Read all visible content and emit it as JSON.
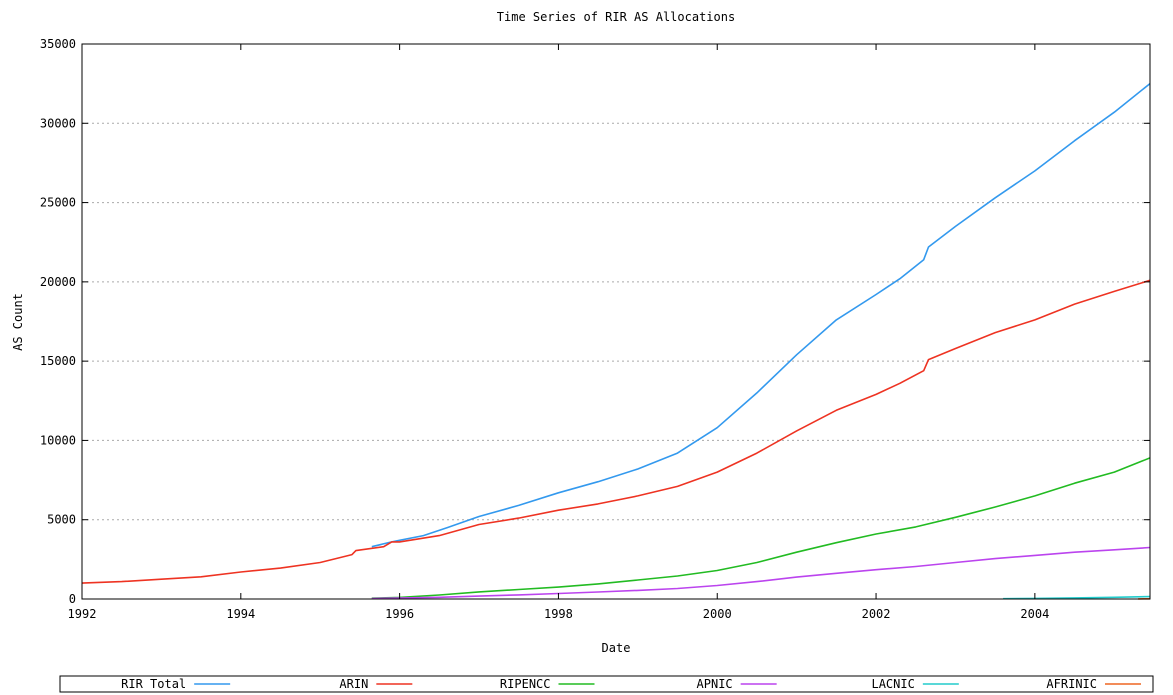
{
  "chart_data": {
    "type": "line",
    "title": "Time Series of RIR AS Allocations",
    "xlabel": "Date",
    "ylabel": "AS Count",
    "xlim": [
      1992,
      2005.45
    ],
    "ylim": [
      0,
      35000
    ],
    "x_ticks": [
      1992,
      1994,
      1996,
      1998,
      2000,
      2002,
      2004
    ],
    "x_tick_labels": [
      "1992",
      "1994",
      "1996",
      "1998",
      "2000",
      "2002",
      "2004"
    ],
    "y_ticks": [
      0,
      5000,
      10000,
      15000,
      20000,
      25000,
      30000,
      35000
    ],
    "y_tick_labels": [
      "0",
      "5000",
      "10000",
      "15000",
      "20000",
      "25000",
      "30000",
      "35000"
    ],
    "grid": "horizontal dotted",
    "legend_position": "bottom",
    "series": [
      {
        "name": "RIR Total",
        "color": "#3399ee",
        "x": [
          1995.65,
          1995.9,
          1996.0,
          1996.3,
          1996.6,
          1997.0,
          1997.5,
          1998.0,
          1998.5,
          1999.0,
          1999.5,
          2000.0,
          2000.5,
          2001.0,
          2001.5,
          2002.0,
          2002.3,
          2002.6,
          2002.66,
          2003.0,
          2003.5,
          2004.0,
          2004.5,
          2005.0,
          2005.45
        ],
        "values": [
          3300,
          3600,
          3700,
          4000,
          4500,
          5200,
          5900,
          6700,
          7400,
          8200,
          9200,
          10800,
          13000,
          15400,
          17600,
          19200,
          20200,
          21400,
          22200,
          23500,
          25300,
          27000,
          28900,
          30700,
          32500
        ]
      },
      {
        "name": "ARIN",
        "color": "#ee3322",
        "x": [
          1992.0,
          1992.5,
          1993.0,
          1993.5,
          1994.0,
          1994.5,
          1995.0,
          1995.4,
          1995.45,
          1995.8,
          1995.9,
          1996.0,
          1996.5,
          1997.0,
          1997.5,
          1998.0,
          1998.5,
          1999.0,
          1999.5,
          2000.0,
          2000.5,
          2001.0,
          2001.5,
          2002.0,
          2002.3,
          2002.6,
          2002.66,
          2003.0,
          2003.5,
          2004.0,
          2004.5,
          2005.0,
          2005.45
        ],
        "values": [
          1000,
          1100,
          1250,
          1400,
          1700,
          1950,
          2300,
          2800,
          3050,
          3300,
          3600,
          3600,
          4000,
          4700,
          5100,
          5600,
          6000,
          6500,
          7100,
          8000,
          9200,
          10600,
          11900,
          12900,
          13600,
          14400,
          15100,
          15800,
          16800,
          17600,
          18600,
          19400,
          20100
        ]
      },
      {
        "name": "RIPENCC",
        "color": "#22bb22",
        "x": [
          1995.65,
          1996.0,
          1996.5,
          1997.0,
          1997.5,
          1998.0,
          1998.5,
          1999.0,
          1999.5,
          2000.0,
          2000.5,
          2001.0,
          2001.5,
          2002.0,
          2002.5,
          2003.0,
          2003.5,
          2004.0,
          2004.5,
          2005.0,
          2005.45
        ],
        "values": [
          50,
          100,
          250,
          450,
          600,
          750,
          950,
          1200,
          1450,
          1800,
          2300,
          2950,
          3550,
          4100,
          4550,
          5150,
          5800,
          6500,
          7300,
          8000,
          8900
        ]
      },
      {
        "name": "APNIC",
        "color": "#bb44ee",
        "x": [
          1995.65,
          1996.0,
          1996.5,
          1997.0,
          1997.5,
          1998.0,
          1998.5,
          1999.0,
          1999.5,
          2000.0,
          2000.5,
          2001.0,
          2001.5,
          2002.0,
          2002.5,
          2003.0,
          2003.5,
          2004.0,
          2004.5,
          2005.0,
          2005.45
        ],
        "values": [
          30,
          60,
          110,
          180,
          260,
          350,
          440,
          540,
          660,
          850,
          1100,
          1380,
          1620,
          1850,
          2050,
          2300,
          2550,
          2750,
          2950,
          3100,
          3250
        ]
      },
      {
        "name": "LACNIC",
        "color": "#22cccc",
        "x": [
          2003.6,
          2004.0,
          2004.5,
          2005.0,
          2005.45
        ],
        "values": [
          20,
          40,
          70,
          110,
          150
        ]
      },
      {
        "name": "AFRINIC",
        "color": "#ee6622",
        "x": [
          2005.3,
          2005.45
        ],
        "values": [
          5,
          15
        ]
      }
    ]
  }
}
